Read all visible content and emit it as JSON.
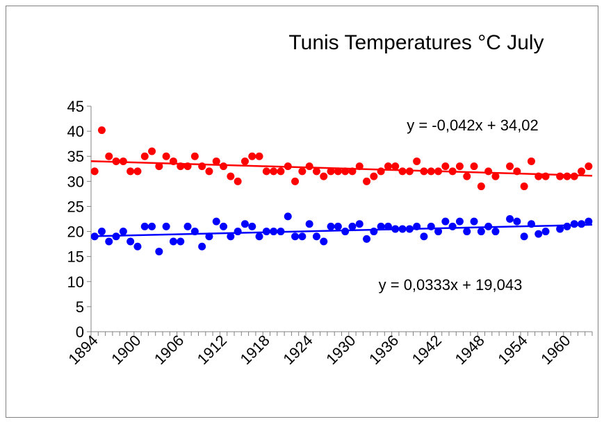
{
  "chart_data": {
    "type": "scatter",
    "title": "Tunis Temperatures °C July",
    "xlabel": "",
    "ylabel": "",
    "xlim": [
      1894,
      1963
    ],
    "ylim": [
      0,
      45
    ],
    "y_ticks": [
      0,
      5,
      10,
      15,
      20,
      25,
      30,
      35,
      40,
      45
    ],
    "x_tick_labels": [
      "1894",
      "1900",
      "1906",
      "1912",
      "1918",
      "1924",
      "1930",
      "1936",
      "1942",
      "1948",
      "1954",
      "1960"
    ],
    "grid": false,
    "legend": "none",
    "series": [
      {
        "color": "#ff0000",
        "x": [
          1894,
          1895,
          1896,
          1897,
          1898,
          1899,
          1900,
          1901,
          1902,
          1903,
          1904,
          1905,
          1906,
          1907,
          1908,
          1909,
          1910,
          1911,
          1912,
          1913,
          1914,
          1915,
          1916,
          1917,
          1918,
          1919,
          1920,
          1921,
          1922,
          1923,
          1924,
          1925,
          1926,
          1927,
          1928,
          1929,
          1930,
          1931,
          1932,
          1933,
          1934,
          1935,
          1936,
          1937,
          1938,
          1939,
          1940,
          1941,
          1942,
          1943,
          1944,
          1945,
          1946,
          1947,
          1948,
          1949,
          1950,
          1952,
          1953,
          1954,
          1955,
          1956,
          1957,
          1959,
          1960,
          1961,
          1962,
          1963
        ],
        "y": [
          32,
          40.2,
          35,
          34,
          34,
          32,
          32,
          35,
          36,
          33,
          35,
          34,
          33,
          33,
          35,
          33,
          32,
          34,
          33,
          31,
          30,
          34,
          35,
          35,
          32,
          32,
          32,
          33,
          30,
          32,
          33,
          32,
          31,
          32,
          32,
          32,
          32,
          33,
          30,
          31,
          32,
          33,
          33,
          32,
          32,
          34,
          32,
          32,
          32,
          33,
          32,
          33,
          31,
          33,
          29,
          32,
          31,
          33,
          32,
          29,
          34,
          31,
          31,
          31,
          31,
          31,
          32,
          33
        ],
        "trendline": {
          "slope": -0.042,
          "intercept": 34.02,
          "equation": "y = -0,042x + 34,02"
        }
      },
      {
        "color": "#0000ff",
        "x": [
          1894,
          1895,
          1896,
          1897,
          1898,
          1899,
          1900,
          1901,
          1902,
          1903,
          1904,
          1905,
          1906,
          1907,
          1908,
          1909,
          1910,
          1911,
          1912,
          1913,
          1914,
          1915,
          1916,
          1917,
          1918,
          1919,
          1920,
          1921,
          1922,
          1923,
          1924,
          1925,
          1926,
          1927,
          1928,
          1929,
          1930,
          1931,
          1932,
          1933,
          1934,
          1935,
          1936,
          1937,
          1938,
          1939,
          1940,
          1941,
          1942,
          1943,
          1944,
          1945,
          1946,
          1947,
          1948,
          1949,
          1950,
          1952,
          1953,
          1954,
          1955,
          1956,
          1957,
          1959,
          1960,
          1961,
          1962,
          1963
        ],
        "y": [
          19,
          20,
          18,
          19,
          20,
          18,
          17,
          21,
          21,
          16,
          21,
          18,
          18,
          21,
          20,
          17,
          19,
          22,
          21,
          19,
          20,
          21.5,
          21,
          19,
          20,
          20,
          20,
          23,
          19,
          19,
          21.5,
          19,
          18,
          21,
          21,
          20,
          21,
          21.5,
          18.5,
          20,
          21,
          21,
          20.5,
          20.5,
          20.5,
          21,
          19,
          21,
          20,
          22,
          21,
          22,
          20,
          22,
          20,
          21,
          20,
          22.5,
          22,
          19,
          21.5,
          19.5,
          20,
          20.5,
          21,
          21.5,
          21.5,
          22
        ],
        "trendline": {
          "slope": 0.0333,
          "intercept": 19.043,
          "equation": "y = 0,0333x + 19,043"
        }
      }
    ]
  }
}
